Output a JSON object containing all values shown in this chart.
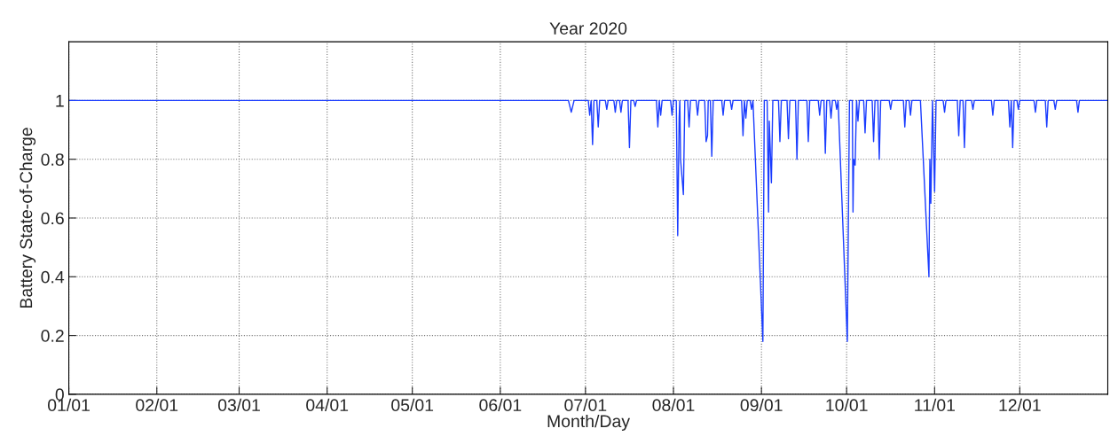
{
  "chart_data": {
    "type": "line",
    "title": "Year 2020",
    "xlabel": "Month/Day",
    "ylabel": "Battery State-of-Charge",
    "x": [
      "2020-01-01",
      "2020-06-25",
      "2020-06-26",
      "2020-06-27",
      "2020-07-02",
      "2020-07-02T12:00",
      "2020-07-03",
      "2020-07-03T12:00",
      "2020-07-04",
      "2020-07-05",
      "2020-07-05T12:00",
      "2020-07-06",
      "2020-07-08",
      "2020-07-08T12:00",
      "2020-07-09",
      "2020-07-11",
      "2020-07-11T12:00",
      "2020-07-12",
      "2020-07-13",
      "2020-07-13T12:00",
      "2020-07-14",
      "2020-07-16",
      "2020-07-16T12:00",
      "2020-07-17",
      "2020-07-18",
      "2020-07-18T12:00",
      "2020-07-19",
      "2020-07-26",
      "2020-07-26T12:00",
      "2020-07-27",
      "2020-07-27T12:00",
      "2020-07-28",
      "2020-07-31",
      "2020-07-31T12:00",
      "2020-08-01",
      "2020-08-02",
      "2020-08-02T12:00",
      "2020-08-03",
      "2020-08-03T06:00",
      "2020-08-03T12:00",
      "2020-08-04T12:00",
      "2020-08-05",
      "2020-08-06",
      "2020-08-06T12:00",
      "2020-08-07",
      "2020-08-09",
      "2020-08-09T12:00",
      "2020-08-10",
      "2020-08-12",
      "2020-08-12T12:00",
      "2020-08-13",
      "2020-08-13T06:00",
      "2020-08-14",
      "2020-08-14T12:00",
      "2020-08-15",
      "2020-08-18",
      "2020-08-18T12:00",
      "2020-08-19",
      "2020-08-21",
      "2020-08-21T12:00",
      "2020-08-22",
      "2020-08-25",
      "2020-08-25T12:00",
      "2020-08-26",
      "2020-08-26T12:00",
      "2020-08-27",
      "2020-08-28",
      "2020-08-28T12:00",
      "2020-08-29",
      "2020-09-01T12:00",
      "2020-09-02",
      "2020-09-03",
      "2020-09-03T12:00",
      "2020-09-03T18:00",
      "2020-09-04T12:00",
      "2020-09-05",
      "2020-09-07",
      "2020-09-07T12:00",
      "2020-09-08",
      "2020-09-10",
      "2020-09-10T12:00",
      "2020-09-11",
      "2020-09-13",
      "2020-09-13T12:00",
      "2020-09-14",
      "2020-09-17",
      "2020-09-17T12:00",
      "2020-09-18",
      "2020-09-21",
      "2020-09-21T12:00",
      "2020-09-22",
      "2020-09-23",
      "2020-09-23T12:00",
      "2020-09-24",
      "2020-09-25",
      "2020-09-25T12:00",
      "2020-09-26",
      "2020-09-27",
      "2020-09-27T12:00",
      "2020-09-28",
      "2020-10-01T06:00",
      "2020-10-02",
      "2020-10-03",
      "2020-10-03T06:00",
      "2020-10-03T12:00",
      "2020-10-04",
      "2020-10-04T12:00",
      "2020-10-05",
      "2020-10-05T12:00",
      "2020-10-07",
      "2020-10-07T12:00",
      "2020-10-08",
      "2020-10-10",
      "2020-10-10T12:00",
      "2020-10-11",
      "2020-10-12",
      "2020-10-12T12:00",
      "2020-10-13",
      "2020-10-16",
      "2020-10-16T12:00",
      "2020-10-17",
      "2020-10-21",
      "2020-10-21T12:00",
      "2020-10-22",
      "2020-10-23",
      "2020-10-23T12:00",
      "2020-10-24",
      "2020-10-27",
      "2020-10-30",
      "2020-10-30T08:00",
      "2020-10-30T16:00",
      "2020-10-31T06:00",
      "2020-11-01",
      "2020-11-01T12:00",
      "2020-11-04",
      "2020-11-04T12:00",
      "2020-11-05",
      "2020-11-09",
      "2020-11-09T12:00",
      "2020-11-10",
      "2020-11-11",
      "2020-11-11T12:00",
      "2020-11-12",
      "2020-11-14",
      "2020-11-14T12:00",
      "2020-11-15",
      "2020-11-21",
      "2020-11-21T12:00",
      "2020-11-22",
      "2020-11-27",
      "2020-11-27T12:00",
      "2020-11-28",
      "2020-11-28T12:00",
      "2020-11-29",
      "2020-11-30",
      "2020-11-30T12:00",
      "2020-12-01",
      "2020-12-06",
      "2020-12-06T12:00",
      "2020-12-07",
      "2020-12-10",
      "2020-12-10T12:00",
      "2020-12-11",
      "2020-12-13",
      "2020-12-13T12:00",
      "2020-12-14",
      "2020-12-21",
      "2020-12-21T12:00",
      "2020-12-22",
      "2020-12-31T18:00"
    ],
    "series": [
      {
        "color": "#1a3cff",
        "values": [
          1,
          1,
          0.96,
          1,
          1,
          0.95,
          1,
          0.85,
          1,
          1,
          0.91,
          1,
          1,
          0.97,
          1,
          1,
          0.96,
          1,
          1,
          0.96,
          1,
          1,
          0.84,
          1,
          1,
          0.98,
          1,
          1,
          0.91,
          1,
          0.95,
          1,
          1,
          0.95,
          1,
          1,
          0.54,
          0.94,
          1,
          0.8,
          0.68,
          1,
          1,
          0.91,
          1,
          1,
          0.95,
          1,
          1,
          0.86,
          0.88,
          1,
          1,
          0.81,
          1,
          1,
          0.95,
          1,
          1,
          0.97,
          1,
          1,
          0.88,
          1,
          0.94,
          1,
          1,
          0.97,
          1,
          0.18,
          1,
          1,
          0.62,
          0.93,
          0.72,
          1,
          1,
          0.86,
          1,
          1,
          0.87,
          1,
          1,
          0.8,
          1,
          1,
          0.86,
          1,
          1,
          0.95,
          1,
          1,
          0.82,
          1,
          1,
          0.94,
          1,
          1,
          0.97,
          1,
          0.18,
          1,
          1,
          0.62,
          0.8,
          0.78,
          1,
          0.93,
          1,
          1,
          0.89,
          1,
          1,
          0.86,
          1,
          1,
          0.8,
          1,
          1,
          0.97,
          1,
          1,
          0.91,
          1,
          1,
          0.95,
          1,
          1,
          0.4,
          0.8,
          0.65,
          1,
          0.69,
          1,
          1,
          0.96,
          1,
          1,
          0.88,
          1,
          1,
          0.84,
          1,
          1,
          0.97,
          1,
          1,
          0.95,
          1,
          1,
          0.91,
          1,
          0.84,
          1,
          1,
          0.97,
          1,
          1,
          0.96,
          1,
          1,
          0.91,
          1,
          1,
          0.97,
          1,
          1,
          0.96,
          1,
          1
        ]
      }
    ],
    "xlim": [
      "2020-01-01",
      "2021-01-01"
    ],
    "xticks": [
      {
        "value": "2020-01-01",
        "label": "01/01"
      },
      {
        "value": "2020-02-01",
        "label": "02/01"
      },
      {
        "value": "2020-03-01",
        "label": "03/01"
      },
      {
        "value": "2020-04-01",
        "label": "04/01"
      },
      {
        "value": "2020-05-01",
        "label": "05/01"
      },
      {
        "value": "2020-06-01",
        "label": "06/01"
      },
      {
        "value": "2020-07-01",
        "label": "07/01"
      },
      {
        "value": "2020-08-01",
        "label": "08/01"
      },
      {
        "value": "2020-09-01",
        "label": "09/01"
      },
      {
        "value": "2020-10-01",
        "label": "10/01"
      },
      {
        "value": "2020-11-01",
        "label": "11/01"
      },
      {
        "value": "2020-12-01",
        "label": "12/01"
      }
    ],
    "ylim": [
      0,
      1.2
    ],
    "yticks": [
      0,
      0.2,
      0.4,
      0.6,
      0.8,
      1
    ],
    "grid": true,
    "line_style": "solid",
    "marker": "none",
    "legend": false
  }
}
